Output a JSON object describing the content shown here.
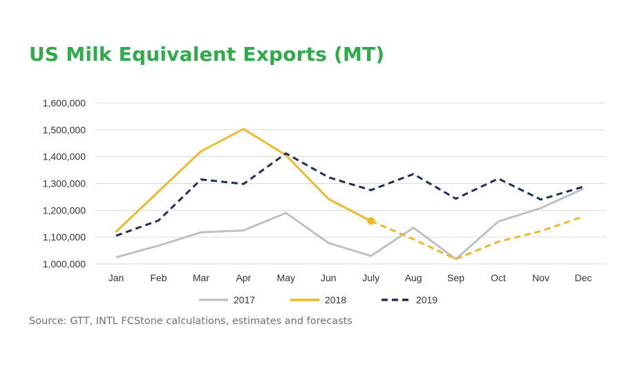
{
  "title": "US Milk Equivalent Exports (MT)",
  "source": "Source: GTT, INTL FCStone calculations, estimates and forecasts",
  "colors": {
    "title": "#2fac4a",
    "series_2017": "#bfc0c4",
    "series_2018": "#f0b92b",
    "series_2019": "#1f2d5a",
    "grid": "#d9d9d9"
  },
  "chart_data": {
    "type": "line",
    "title": "US Milk Equivalent Exports (MT)",
    "xlabel": "",
    "ylabel": "",
    "categories": [
      "Jan",
      "Feb",
      "Mar",
      "Apr",
      "May",
      "Jun",
      "July",
      "Aug",
      "Sep",
      "Oct",
      "Nov",
      "Dec"
    ],
    "ylim": [
      1000000,
      1600000
    ],
    "yticks": [
      1000000,
      1100000,
      1200000,
      1300000,
      1400000,
      1500000,
      1600000
    ],
    "ytick_labels": [
      "1,000,000",
      "1,100,000",
      "1,200,000",
      "1,300,000",
      "1,400,000",
      "1,500,000",
      "1,600,000"
    ],
    "grid": true,
    "legend_position": "bottom",
    "series": [
      {
        "name": "2017",
        "style": "solid",
        "values": [
          1025000,
          1068000,
          1118000,
          1125000,
          1190000,
          1078000,
          1030000,
          1135000,
          1018000,
          1158000,
          1208000,
          1280000
        ]
      },
      {
        "name": "2018",
        "style": "solid",
        "forecast_from_index": 6,
        "values": [
          1120000,
          1270000,
          1420000,
          1503000,
          1405000,
          1242000,
          1160000,
          1092000,
          1018000,
          1083000,
          1122000,
          1177000
        ]
      },
      {
        "name": "2019",
        "style": "dashed",
        "values": [
          1105000,
          1162000,
          1315000,
          1298000,
          1412000,
          1323000,
          1275000,
          1335000,
          1243000,
          1318000,
          1240000,
          1288000
        ]
      }
    ]
  }
}
